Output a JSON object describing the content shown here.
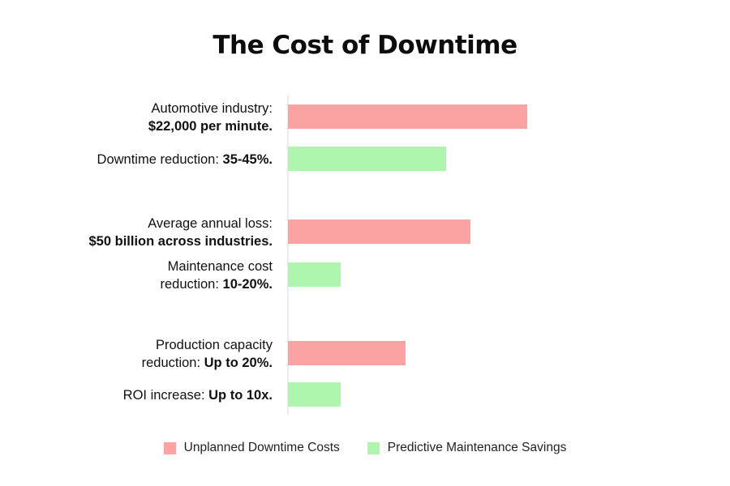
{
  "chart_data": {
    "type": "bar",
    "orientation": "horizontal",
    "title": "The Cost of Downtime",
    "colors": {
      "costs": "#fba3a2",
      "savings": "#aef5ae",
      "axis": "#d9d9d9"
    },
    "bars": [
      {
        "series": "costs",
        "lines": [
          [
            {
              "t": "Automotive industry:",
              "b": false
            }
          ],
          [
            {
              "t": "$22,000 per minute.",
              "b": true
            }
          ]
        ],
        "value": 295
      },
      {
        "series": "savings",
        "lines": [
          [
            {
              "t": "Downtime reduction: ",
              "b": false
            },
            {
              "t": "35-45%.",
              "b": true
            }
          ]
        ],
        "value": 195
      },
      {
        "series": "costs",
        "lines": [
          [
            {
              "t": "Average annual loss:",
              "b": false
            }
          ],
          [
            {
              "t": "$50 billion across industries.",
              "b": true
            }
          ]
        ],
        "value": 225
      },
      {
        "series": "savings",
        "lines": [
          [
            {
              "t": "Maintenance cost",
              "b": false
            }
          ],
          [
            {
              "t": "reduction: ",
              "b": false
            },
            {
              "t": "10-20%.",
              "b": true
            }
          ]
        ],
        "value": 65
      },
      {
        "series": "costs",
        "lines": [
          [
            {
              "t": "Production capacity",
              "b": false
            }
          ],
          [
            {
              "t": "reduction: ",
              "b": false
            },
            {
              "t": "Up to 20%.",
              "b": true
            }
          ]
        ],
        "value": 145
      },
      {
        "series": "savings",
        "lines": [
          [
            {
              "t": "ROI increase: ",
              "b": false
            },
            {
              "t": "Up to 10x.",
              "b": true
            }
          ]
        ],
        "value": 65
      }
    ],
    "legend": [
      {
        "key": "costs",
        "label": "Unplanned Downtime Costs"
      },
      {
        "key": "savings",
        "label": "Predictive Maintenance Savings"
      }
    ],
    "legend_position": "bottom",
    "grid": false
  }
}
